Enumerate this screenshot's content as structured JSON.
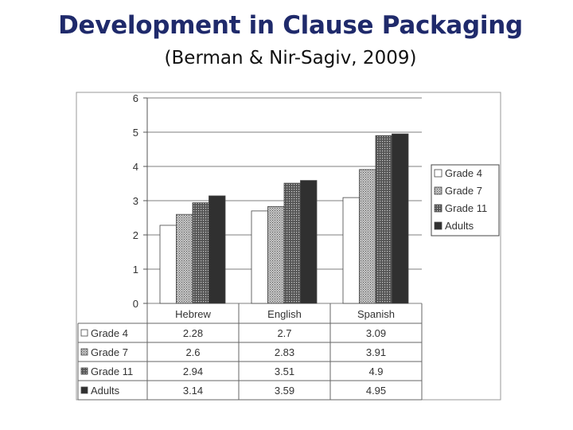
{
  "header": {
    "title": "Development in Clause Packaging",
    "subtitle": "(Berman & Nir-Sagiv, 2009)"
  },
  "chart_data": {
    "type": "bar",
    "categories": [
      "Hebrew",
      "English",
      "Spanish"
    ],
    "series": [
      {
        "name": "Grade 4",
        "values": [
          2.28,
          2.7,
          3.09
        ],
        "color": "#ffffff",
        "fill_style": "white"
      },
      {
        "name": "Grade 7",
        "values": [
          2.6,
          2.83,
          3.91
        ],
        "color": "#a0a0a0",
        "fill_style": "dotted-grey"
      },
      {
        "name": "Grade 11",
        "values": [
          2.94,
          3.51,
          4.9
        ],
        "color": "#6a6a6a",
        "fill_style": "hatched-dark"
      },
      {
        "name": "Adults",
        "values": [
          3.14,
          3.59,
          4.95
        ],
        "color": "#333333",
        "fill_style": "solid-dark"
      }
    ],
    "table_values": [
      [
        "2.28",
        "2.7",
        "3.09"
      ],
      [
        "2.6",
        "2.83",
        "3.91"
      ],
      [
        "2.94",
        "3.51",
        "4.9"
      ],
      [
        "3.14",
        "3.59",
        "4.95"
      ]
    ],
    "y_ticks": [
      "0",
      "1",
      "2",
      "3",
      "4",
      "5",
      "6"
    ],
    "ylim": [
      0,
      6
    ],
    "xlabel": "",
    "ylabel": "",
    "grid": true,
    "legend": "right",
    "data_table": true
  }
}
